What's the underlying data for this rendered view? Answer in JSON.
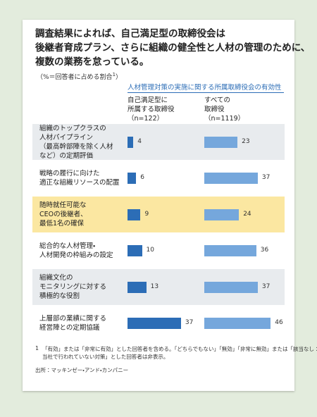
{
  "chart_data": {
    "type": "bar",
    "title": [
      "調査結果によれば、自己満足型の取締役会は",
      "後継者育成プラン、さらに組織の健全性と人材の管理のために、",
      "複数の業務を怠っている。"
    ],
    "subtitle": "（%＝回答者に占める割合",
    "subtitle_note": "1",
    "subtitle_end": "）",
    "group_title": "人材管理対策の実施に関する所属取締役会の有効性",
    "categories": [
      [
        "組織のトップクラスの",
        "人材パイプライン",
        "（最高幹部陣を除く人材",
        "など）の定期評価"
      ],
      [
        "戦略の履行に向けた",
        "適正な組織リソースの配置"
      ],
      [
        "随時就任可能な",
        "CEOの後継者、",
        "最低1名の確保"
      ],
      [
        "総合的な人材管理・",
        "人材開発の枠組みの設定"
      ],
      [
        "組織文化の",
        "モニタリングに対する",
        "積極的な役割"
      ],
      [
        "上層部の業績に関する",
        "経営陣との定期協議"
      ]
    ],
    "row_backgrounds": [
      "#e8ebee",
      "#ffffff",
      "#fbe7a1",
      "#ffffff",
      "#e8ebee",
      "#ffffff"
    ],
    "series": [
      {
        "name": [
          "自己満足型に",
          "所属する取締役",
          "（n=122）"
        ],
        "color": "#2c6db6",
        "values": [
          4,
          6,
          9,
          10,
          13,
          37
        ]
      },
      {
        "name": [
          "すべての",
          "取締役",
          "（n=1119）"
        ],
        "color": "#75a7dc",
        "values": [
          23,
          37,
          24,
          36,
          37,
          46
        ]
      }
    ],
    "footnote_mark": "1",
    "footnote": [
      "「有効」または「非常に有効」とした回答者を含める。「どちらでもない」「無効」「非常に無効」または「該当なし：",
      "当社で行われていない対策」とした回答者は非表示。"
    ],
    "source": "出所：マッキンゼー・アンド・カンパニー"
  }
}
